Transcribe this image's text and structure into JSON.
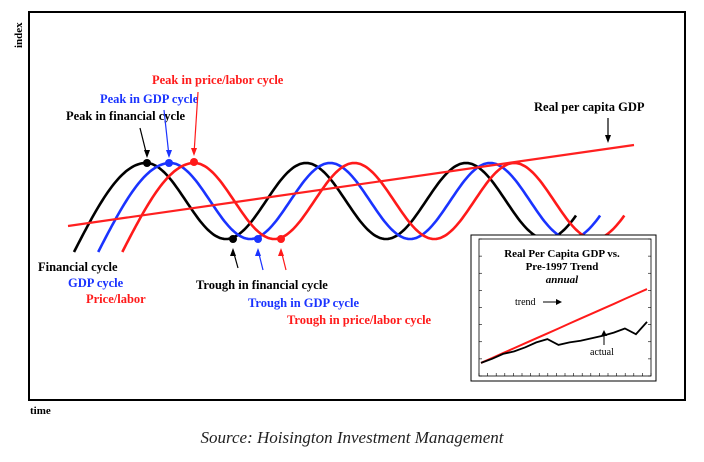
{
  "chart_data": {
    "type": "line",
    "ylabel": "index",
    "xlabel": "time",
    "series": [
      {
        "name": "Financial cycle",
        "color": "#000000",
        "phase": 0.0
      },
      {
        "name": "GDP cycle",
        "color": "#1a33ff",
        "phase": 0.35
      },
      {
        "name": "Price/labor",
        "color": "#ff1a1a",
        "phase": 0.7
      }
    ],
    "trend": {
      "name": "Real per capita GDP",
      "color": "#ff2020"
    },
    "annotations": {
      "peak_price": "Peak in price/labor cycle",
      "peak_gdp": "Peak in GDP cycle",
      "peak_fin": "Peak in financial cycle",
      "trough_fin": "Trough in financial cycle",
      "trough_gdp": "Trough in GDP cycle",
      "trough_price": "Trough in price/labor cycle",
      "real_gdp": "Real per capita GDP"
    },
    "inset": {
      "type": "line",
      "title": "Real Per Capita GDP vs.",
      "title2": "Pre-1997 Trend",
      "subtitle": "annual",
      "series": [
        {
          "name": "trend",
          "color": "#ff1a1a",
          "values": [
            0.05,
            0.11,
            0.17,
            0.23,
            0.29,
            0.35,
            0.41,
            0.47,
            0.53,
            0.59,
            0.65,
            0.71,
            0.77,
            0.83,
            0.89,
            0.95
          ]
        },
        {
          "name": "actual",
          "color": "#000000",
          "values": [
            0.05,
            0.1,
            0.16,
            0.19,
            0.24,
            0.3,
            0.34,
            0.27,
            0.3,
            0.32,
            0.35,
            0.38,
            0.42,
            0.47,
            0.4,
            0.55
          ]
        }
      ],
      "labels": {
        "trend": "trend",
        "actual": "actual"
      }
    }
  },
  "caption": "Source: Hoisington Investment Management"
}
